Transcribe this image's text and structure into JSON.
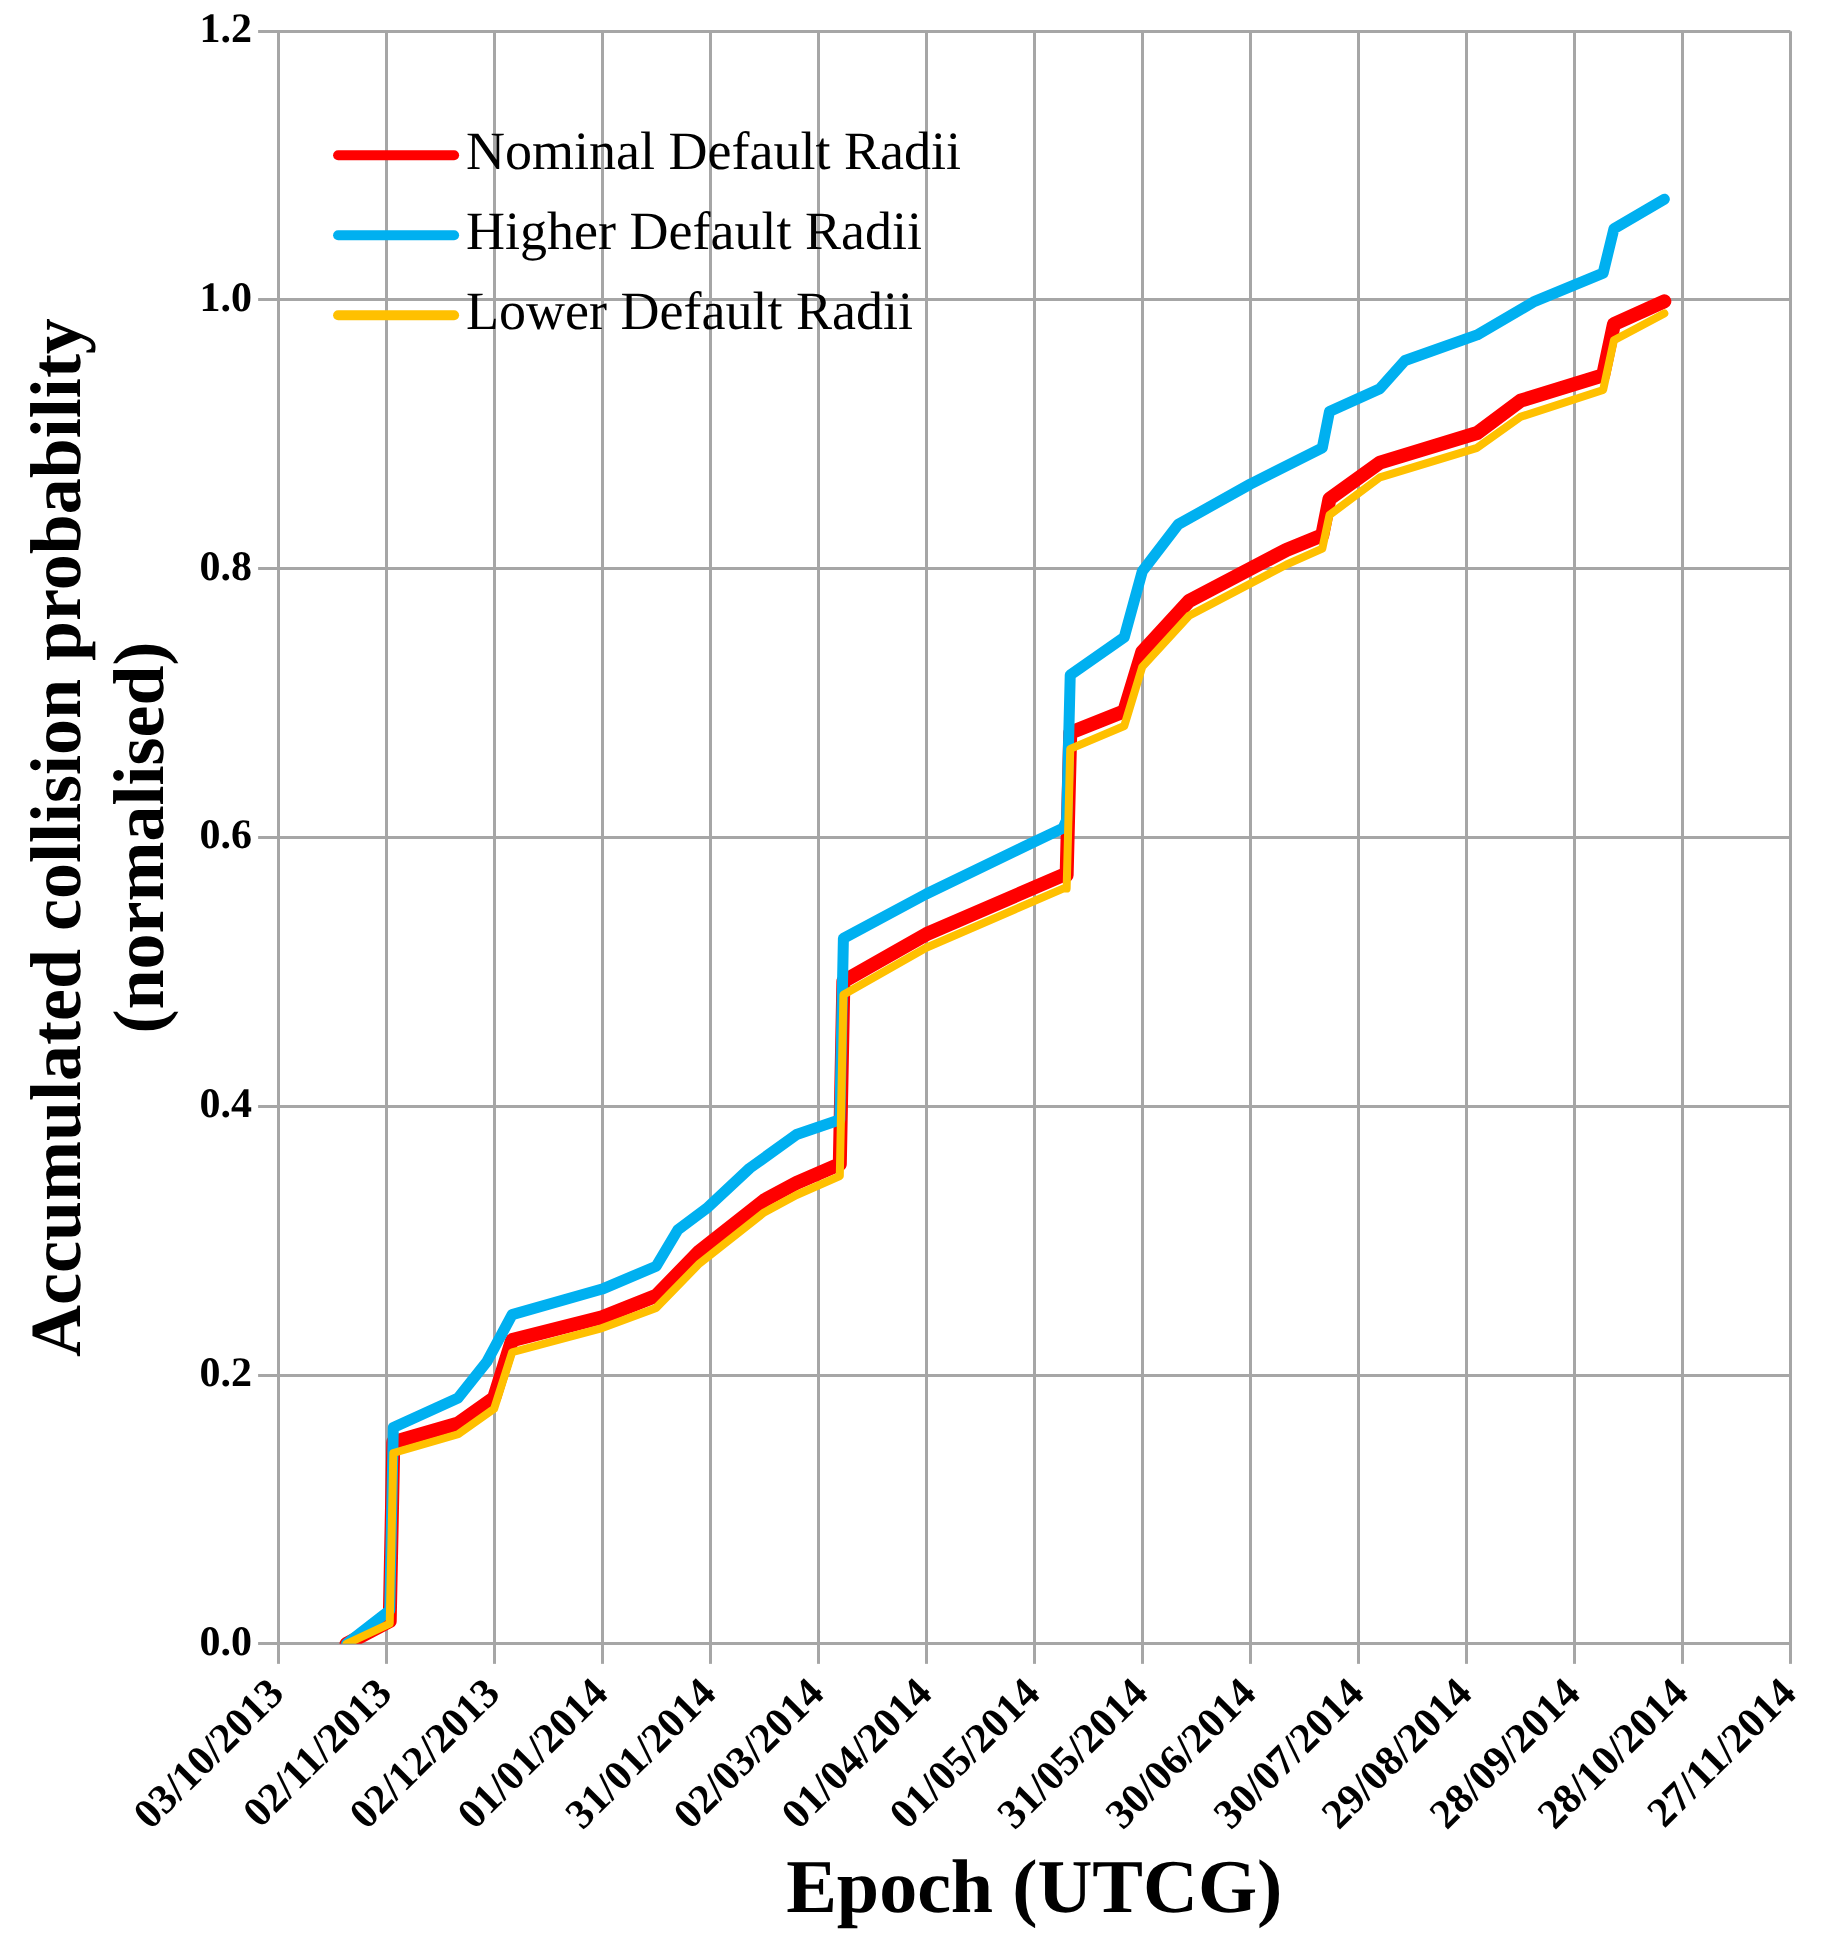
{
  "chart_data": {
    "type": "line",
    "xlabel": "Epoch (UTCG)",
    "ylabel": "Accumulated collision probability\n(normalised)",
    "xlim": [
      "2013-10-03",
      "2014-11-27"
    ],
    "xticks": [
      {
        "value": "2013-10-03",
        "label": "03/10/2013"
      },
      {
        "value": "2013-11-02",
        "label": "02/11/2013"
      },
      {
        "value": "2013-12-02",
        "label": "02/12/2013"
      },
      {
        "value": "2014-01-01",
        "label": "01/01/2014"
      },
      {
        "value": "2014-01-31",
        "label": "31/01/2014"
      },
      {
        "value": "2014-03-02",
        "label": "02/03/2014"
      },
      {
        "value": "2014-04-01",
        "label": "01/04/2014"
      },
      {
        "value": "2014-05-01",
        "label": "01/05/2014"
      },
      {
        "value": "2014-05-31",
        "label": "31/05/2014"
      },
      {
        "value": "2014-06-30",
        "label": "30/06/2014"
      },
      {
        "value": "2014-07-30",
        "label": "30/07/2014"
      },
      {
        "value": "2014-08-29",
        "label": "29/08/2014"
      },
      {
        "value": "2014-09-28",
        "label": "28/09/2014"
      },
      {
        "value": "2014-10-28",
        "label": "28/10/2014"
      },
      {
        "value": "2014-11-27",
        "label": "27/11/2014"
      }
    ],
    "ylim": [
      0,
      1.2
    ],
    "yticks": [
      {
        "value": 0,
        "label": "0.0"
      },
      {
        "value": 0.2,
        "label": "0.2"
      },
      {
        "value": 0.4,
        "label": "0.4"
      },
      {
        "value": 0.6,
        "label": "0.6"
      },
      {
        "value": 0.8,
        "label": "0.8"
      },
      {
        "value": 1,
        "label": "1.0"
      },
      {
        "value": 1.2,
        "label": "1.2"
      }
    ],
    "grid": true,
    "legend": "top left",
    "marker": "none",
    "series": [
      {
        "name": "Nominal Default Radii",
        "color": "#ff0000",
        "x": [
          "2013-10-22",
          "2013-11-03",
          "2013-11-04",
          "2013-11-22",
          "2013-12-02",
          "2013-12-07",
          "2014-01-01",
          "2014-01-16",
          "2014-01-28",
          "2014-02-15",
          "2014-02-24",
          "2014-03-08",
          "2014-03-09",
          "2014-04-01",
          "2014-05-09",
          "2014-05-10",
          "2014-05-11",
          "2014-05-26",
          "2014-05-31",
          "2014-06-13",
          "2014-07-10",
          "2014-07-20",
          "2014-07-22",
          "2014-08-05",
          "2014-09-01",
          "2014-09-13",
          "2014-10-06",
          "2014-10-09",
          "2014-10-23"
        ],
        "values": [
          0,
          0.017,
          0.15,
          0.164,
          0.183,
          0.226,
          0.243,
          0.259,
          0.292,
          0.33,
          0.343,
          0.357,
          0.493,
          0.528,
          0.572,
          0.572,
          0.678,
          0.694,
          0.738,
          0.776,
          0.814,
          0.825,
          0.852,
          0.879,
          0.901,
          0.925,
          0.944,
          0.982,
          0.999
        ]
      },
      {
        "name": "Higher Default Radii",
        "color": "#00b0f0",
        "x": [
          "2013-10-22",
          "2013-11-03",
          "2013-11-04",
          "2013-11-22",
          "2013-11-30",
          "2013-12-07",
          "2014-01-01",
          "2014-01-16",
          "2014-01-22",
          "2014-01-30",
          "2014-02-11",
          "2014-02-24",
          "2014-03-08",
          "2014-03-09",
          "2014-04-01",
          "2014-04-28",
          "2014-05-09",
          "2014-05-10",
          "2014-05-11",
          "2014-05-26",
          "2014-05-31",
          "2014-06-10",
          "2014-06-30",
          "2014-07-20",
          "2014-07-22",
          "2014-08-05",
          "2014-08-12",
          "2014-09-01",
          "2014-09-17",
          "2014-10-06",
          "2014-10-09",
          "2014-10-23"
        ],
        "values": [
          0,
          0.025,
          0.161,
          0.183,
          0.21,
          0.245,
          0.264,
          0.281,
          0.308,
          0.324,
          0.354,
          0.379,
          0.39,
          0.525,
          0.558,
          0.593,
          0.607,
          0.613,
          0.721,
          0.749,
          0.798,
          0.833,
          0.863,
          0.89,
          0.917,
          0.934,
          0.955,
          0.974,
          0.999,
          1.02,
          1.053,
          1.075
        ]
      },
      {
        "name": "Lower Default Radii",
        "color": "#ffc000",
        "x": [
          "2013-10-22",
          "2013-11-03",
          "2013-11-04",
          "2013-11-22",
          "2013-12-02",
          "2013-12-07",
          "2014-01-01",
          "2014-01-16",
          "2014-01-28",
          "2014-02-15",
          "2014-02-24",
          "2014-03-08",
          "2014-03-09",
          "2014-04-01",
          "2014-05-09",
          "2014-05-10",
          "2014-05-11",
          "2014-05-26",
          "2014-05-31",
          "2014-06-13",
          "2014-07-10",
          "2014-07-20",
          "2014-07-22",
          "2014-08-05",
          "2014-09-01",
          "2014-09-13",
          "2014-10-06",
          "2014-10-09",
          "2014-10-23"
        ],
        "values": [
          0,
          0.015,
          0.142,
          0.156,
          0.175,
          0.217,
          0.235,
          0.25,
          0.283,
          0.321,
          0.334,
          0.348,
          0.483,
          0.518,
          0.562,
          0.562,
          0.666,
          0.683,
          0.727,
          0.765,
          0.803,
          0.815,
          0.84,
          0.868,
          0.89,
          0.913,
          0.933,
          0.97,
          0.99
        ]
      }
    ]
  }
}
